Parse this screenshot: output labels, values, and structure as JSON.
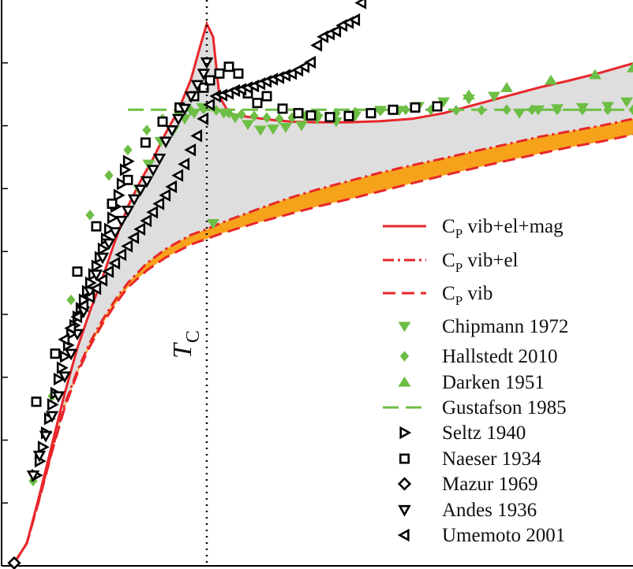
{
  "colors": {
    "red": "#e8262b",
    "green": "#6dbe45",
    "orange": "#f7a21b",
    "gray_fill": "#dedede",
    "black": "#000000"
  },
  "chart_data": {
    "type": "scatter",
    "title": "",
    "xlabel": "",
    "ylabel": "",
    "xlim": [
      0,
      1000
    ],
    "ylim": [
      0,
      1000
    ],
    "tick_labels_visible": false,
    "vline": {
      "x": 325,
      "label": "T",
      "label_sub": "C",
      "style": "dotted"
    },
    "legend_position": "right",
    "curves": [
      {
        "name": "vib+el+mag",
        "style": "solid",
        "x": [
          20,
          40,
          60,
          80,
          100,
          120,
          140,
          160,
          180,
          200,
          220,
          240,
          260,
          280,
          300,
          315,
          325,
          335,
          345,
          360,
          380,
          400,
          430,
          460,
          500,
          550,
          600,
          650,
          700,
          750,
          800,
          850,
          900,
          950,
          1000
        ],
        "y": [
          5,
          40,
          125,
          215,
          305,
          385,
          450,
          510,
          575,
          635,
          680,
          720,
          765,
          805,
          860,
          920,
          958,
          935,
          830,
          800,
          795,
          792,
          788,
          785,
          784,
          784,
          786,
          790,
          800,
          815,
          830,
          845,
          858,
          872,
          888
        ]
      },
      {
        "name": "vib+el",
        "style": "dashdot",
        "x": [
          20,
          40,
          60,
          80,
          100,
          120,
          140,
          160,
          180,
          200,
          230,
          260,
          300,
          325,
          350,
          400,
          450,
          500,
          550,
          600,
          650,
          700,
          750,
          800,
          850,
          900,
          950,
          1000
        ],
        "y": [
          5,
          40,
          120,
          205,
          285,
          345,
          395,
          435,
          470,
          500,
          535,
          560,
          585,
          595,
          607,
          628,
          648,
          665,
          680,
          695,
          708,
          720,
          733,
          745,
          758,
          768,
          778,
          790
        ]
      },
      {
        "name": "vib",
        "style": "dashed",
        "x": [
          20,
          40,
          60,
          80,
          100,
          120,
          140,
          160,
          180,
          200,
          230,
          260,
          300,
          325,
          350,
          400,
          450,
          500,
          550,
          600,
          650,
          700,
          750,
          800,
          850,
          900,
          950,
          1000
        ],
        "y": [
          5,
          40,
          118,
          202,
          280,
          340,
          388,
          428,
          462,
          492,
          522,
          545,
          568,
          578,
          588,
          605,
          620,
          635,
          648,
          662,
          676,
          690,
          703,
          716,
          728,
          740,
          750,
          762
        ]
      },
      {
        "name": "Gustafson 1985",
        "style": "dashed-green",
        "x": [
          200,
          1000
        ],
        "y": [
          806,
          806
        ]
      }
    ],
    "series": [
      {
        "name": "Chipmann 1972",
        "marker": "triangle-down-filled",
        "x": [
          218,
          233,
          252,
          272,
          290,
          305,
          318,
          335,
          352,
          370,
          390,
          410,
          430,
          450,
          475,
          500,
          530,
          560,
          600,
          630,
          660,
          700,
          740,
          780,
          820,
          850,
          880,
          920,
          960,
          990
        ],
        "y": [
          665,
          710,
          750,
          770,
          790,
          800,
          810,
          605,
          800,
          792,
          780,
          770,
          772,
          775,
          778,
          790,
          785,
          795,
          805,
          805,
          812,
          820,
          825,
          830,
          800,
          806,
          808,
          810,
          812,
          820
        ]
      },
      {
        "name": "Hallstedt 2010",
        "marker": "diamond-filled",
        "x": [
          50,
          80,
          110,
          140,
          170,
          200,
          230,
          255,
          280,
          300,
          320,
          340,
          360,
          380,
          400,
          420,
          440,
          460,
          480,
          500,
          530,
          560,
          600,
          640,
          680,
          720,
          760,
          800,
          840,
          880,
          920,
          960,
          1000
        ],
        "y": [
          150,
          300,
          470,
          620,
          690,
          735,
          770,
          790,
          800,
          805,
          808,
          805,
          800,
          798,
          795,
          792,
          790,
          792,
          795,
          798,
          800,
          802,
          804,
          806,
          806,
          805,
          805,
          806,
          806,
          806,
          806,
          806,
          806
        ]
      },
      {
        "name": "Darken 1951",
        "marker": "triangle-up-filled",
        "x": [
          740,
          800,
          870,
          940,
          1000
        ],
        "y": [
          832,
          845,
          858,
          868,
          880
        ]
      },
      {
        "name": "Seltz 1940",
        "marker": "triangle-right-open",
        "x": [
          55,
          60,
          65,
          70,
          75,
          80,
          85,
          90,
          95,
          100,
          105,
          110,
          115,
          120,
          125,
          130,
          135,
          140,
          145,
          150,
          155,
          160,
          165,
          170,
          175,
          180,
          185,
          190,
          195,
          200
        ],
        "y": [
          160,
          185,
          210,
          235,
          260,
          285,
          305,
          330,
          350,
          370,
          390,
          410,
          425,
          440,
          455,
          470,
          485,
          500,
          515,
          530,
          545,
          560,
          578,
          595,
          615,
          635,
          655,
          675,
          700,
          715
        ]
      },
      {
        "name": "Naeser 1934",
        "marker": "square-open",
        "x": [
          55,
          85,
          120,
          150,
          175,
          200,
          228,
          255,
          282,
          305,
          320,
          330,
          345,
          360,
          375,
          390,
          405,
          420,
          445,
          470,
          490,
          520,
          550,
          585,
          620,
          655,
          690
        ],
        "y": [
          290,
          375,
          520,
          600,
          640,
          682,
          748,
          785,
          810,
          830,
          845,
          858,
          870,
          882,
          870,
          835,
          818,
          830,
          808,
          800,
          796,
          793,
          795,
          800,
          806,
          810,
          812
        ]
      },
      {
        "name": "Mazur 1969",
        "marker": "diamond-open",
        "x": [
          20
        ],
        "y": [
          5
        ]
      },
      {
        "name": "Andes 1936",
        "marker": "triangle-down-open",
        "x": [
          50,
          60,
          70,
          80,
          90,
          100,
          110,
          120,
          130,
          140,
          150,
          160,
          170,
          180,
          190,
          200,
          210,
          220,
          230,
          240,
          250,
          260,
          270,
          280,
          290,
          300,
          310,
          320,
          325
        ],
        "y": [
          160,
          195,
          230,
          265,
          300,
          335,
          375,
          410,
          450,
          485,
          515,
          545,
          570,
          590,
          610,
          628,
          648,
          665,
          680,
          700,
          720,
          750,
          770,
          790,
          808,
          830,
          850,
          870,
          890
        ]
      },
      {
        "name": "Umemoto 2001",
        "marker": "triangle-left-open",
        "x": [
          100,
          110,
          120,
          130,
          140,
          150,
          160,
          170,
          180,
          190,
          200,
          210,
          220,
          230,
          240,
          250,
          260,
          270,
          280,
          290,
          300,
          310,
          320,
          330,
          340,
          350,
          360,
          370,
          380,
          390,
          400,
          410,
          420,
          430,
          440,
          450,
          460,
          470,
          480,
          490,
          500,
          510,
          520,
          530,
          540,
          550,
          560,
          570
        ],
        "y": [
          400,
          420,
          440,
          460,
          475,
          490,
          505,
          520,
          535,
          550,
          565,
          580,
          595,
          610,
          625,
          640,
          655,
          670,
          690,
          710,
          735,
          760,
          790,
          815,
          830,
          832,
          835,
          840,
          842,
          845,
          848,
          852,
          856,
          860,
          863,
          867,
          870,
          876,
          882,
          890,
          920,
          935,
          940,
          945,
          955,
          960,
          965,
          995
        ]
      }
    ],
    "legend": [
      {
        "label_main": "C",
        "label_sub": "P",
        "label_rest": " vib+el+mag",
        "style": "solid"
      },
      {
        "label_main": "C",
        "label_sub": "P",
        "label_rest": " vib+el",
        "style": "dashdot"
      },
      {
        "label_main": "C",
        "label_sub": "P",
        "label_rest": " vib",
        "style": "dashed"
      },
      {
        "label": "Chipmann 1972",
        "marker": "triangle-down-filled"
      },
      {
        "label": "Hallstedt 2010",
        "marker": "diamond-filled"
      },
      {
        "label": "Darken 1951",
        "marker": "triangle-up-filled"
      },
      {
        "label": "Gustafson 1985",
        "marker": "dashed-green"
      },
      {
        "label": "Seltz 1940",
        "marker": "triangle-right-open"
      },
      {
        "label": "Naeser 1934",
        "marker": "square-open"
      },
      {
        "label": "Mazur 1969",
        "marker": "diamond-open"
      },
      {
        "label": "Andes 1936",
        "marker": "triangle-down-open"
      },
      {
        "label": "Umemoto 2001",
        "marker": "triangle-left-open"
      }
    ]
  }
}
